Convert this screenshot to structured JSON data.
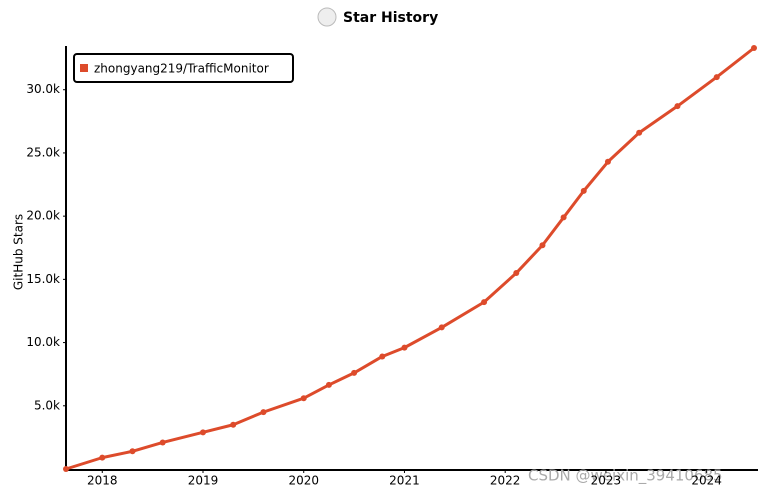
{
  "chart_data": {
    "type": "line",
    "title": "Star History",
    "y_label": "GitHub Stars",
    "watermark": "CSDN @weixin_39410685",
    "legend": "top-left",
    "grid": false,
    "x": [
      2017.64,
      2018.0,
      2018.3,
      2018.6,
      2019.0,
      2019.3,
      2019.6,
      2020.0,
      2020.25,
      2020.5,
      2020.78,
      2021.0,
      2021.37,
      2021.79,
      2022.11,
      2022.37,
      2022.58,
      2022.78,
      2023.02,
      2023.33,
      2023.71,
      2024.1,
      2024.47
    ],
    "series": [
      {
        "name": "zhongyang219/TrafficMonitor",
        "color": "#dd4b2b",
        "values": [
          0,
          900,
          1400,
          2100,
          2900,
          3500,
          4500,
          5600,
          6650,
          7600,
          8900,
          9600,
          11200,
          13200,
          15500,
          17700,
          19900,
          22000,
          24300,
          26600,
          28700,
          31000,
          33300
        ]
      }
    ],
    "xlim": [
      2017.64,
      2024.47
    ],
    "xticks": [
      2018,
      2019,
      2020,
      2021,
      2022,
      2023,
      2024
    ],
    "ylim": [
      0,
      33300
    ],
    "yticks": [
      {
        "value": 5000,
        "label": "5.0k"
      },
      {
        "value": 10000,
        "label": "10.0k"
      },
      {
        "value": 15000,
        "label": "15.0k"
      },
      {
        "value": 20000,
        "label": "20.0k"
      },
      {
        "value": 25000,
        "label": "25.0k"
      },
      {
        "value": 30000,
        "label": "30.0k"
      }
    ]
  }
}
